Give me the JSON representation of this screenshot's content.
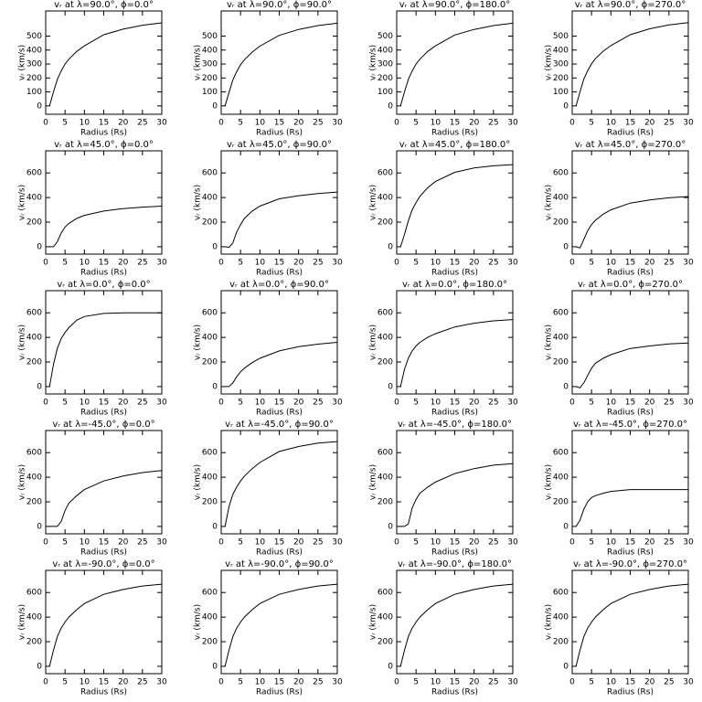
{
  "chart_data": [
    {
      "type": "line",
      "title": "vᵣ at λ=90.0°, ϕ=0.0°",
      "x_label": "Radius (Rs)",
      "y_label": "vᵣ (km/s)",
      "x": [
        1,
        2,
        3,
        4,
        5,
        6,
        8,
        10,
        15,
        20,
        25,
        30
      ],
      "values": [
        0,
        100,
        190,
        250,
        300,
        335,
        390,
        430,
        510,
        550,
        578,
        595
      ],
      "xlim": [
        0,
        30
      ],
      "ylim": [
        -60,
        680
      ],
      "xticks": [
        0,
        5,
        10,
        15,
        20,
        25,
        30
      ],
      "yticks": [
        0,
        100,
        200,
        300,
        400,
        500
      ]
    },
    {
      "type": "line",
      "title": "vᵣ at λ=90.0°, ϕ=90.0°",
      "x_label": "Radius (Rs)",
      "y_label": "vᵣ (km/s)",
      "x": [
        1,
        2,
        3,
        4,
        5,
        6,
        8,
        10,
        15,
        20,
        25,
        30
      ],
      "values": [
        0,
        95,
        185,
        245,
        295,
        330,
        385,
        428,
        505,
        548,
        575,
        592
      ],
      "xlim": [
        0,
        30
      ],
      "ylim": [
        -60,
        680
      ],
      "xticks": [
        0,
        5,
        10,
        15,
        20,
        25,
        30
      ],
      "yticks": [
        0,
        100,
        200,
        300,
        400,
        500
      ]
    },
    {
      "type": "line",
      "title": "vᵣ at λ=90.0°, ϕ=180.0°",
      "x_label": "Radius (Rs)",
      "y_label": "vᵣ (km/s)",
      "x": [
        1,
        2,
        3,
        4,
        5,
        6,
        8,
        10,
        15,
        20,
        25,
        30
      ],
      "values": [
        0,
        100,
        190,
        250,
        300,
        335,
        390,
        430,
        508,
        548,
        575,
        592
      ],
      "xlim": [
        0,
        30
      ],
      "ylim": [
        -60,
        680
      ],
      "xticks": [
        0,
        5,
        10,
        15,
        20,
        25,
        30
      ],
      "yticks": [
        0,
        100,
        200,
        300,
        400,
        500
      ]
    },
    {
      "type": "line",
      "title": "vᵣ at λ=90.0°, ϕ=270.0°",
      "x_label": "Radius (Rs)",
      "y_label": "vᵣ (km/s)",
      "x": [
        1,
        2,
        3,
        4,
        5,
        6,
        8,
        10,
        15,
        20,
        25,
        30
      ],
      "values": [
        0,
        100,
        192,
        252,
        302,
        338,
        392,
        432,
        510,
        552,
        580,
        597
      ],
      "xlim": [
        0,
        30
      ],
      "ylim": [
        -60,
        680
      ],
      "xticks": [
        0,
        5,
        10,
        15,
        20,
        25,
        30
      ],
      "yticks": [
        0,
        100,
        200,
        300,
        400,
        500
      ]
    },
    {
      "type": "line",
      "title": "vᵣ at λ=45.0°, ϕ=0.0°",
      "x_label": "Radius (Rs)",
      "y_label": "vᵣ (km/s)",
      "x": [
        1,
        2,
        3,
        4,
        5,
        6,
        8,
        10,
        15,
        20,
        25,
        30
      ],
      "values": [
        0,
        0,
        40,
        110,
        160,
        190,
        230,
        255,
        290,
        310,
        322,
        330
      ],
      "xlim": [
        0,
        30
      ],
      "ylim": [
        -60,
        780
      ],
      "xticks": [
        0,
        5,
        10,
        15,
        20,
        25,
        30
      ],
      "yticks": [
        0,
        200,
        400,
        600
      ]
    },
    {
      "type": "line",
      "title": "vᵣ at λ=45.0°, ϕ=90.0°",
      "x_label": "Radius (Rs)",
      "y_label": "vᵣ (km/s)",
      "x": [
        1,
        2,
        3,
        4,
        5,
        6,
        8,
        10,
        15,
        20,
        25,
        30
      ],
      "values": [
        0,
        -5,
        30,
        120,
        180,
        230,
        290,
        330,
        390,
        415,
        432,
        445
      ],
      "xlim": [
        0,
        30
      ],
      "ylim": [
        -60,
        780
      ],
      "xticks": [
        0,
        5,
        10,
        15,
        20,
        25,
        30
      ],
      "yticks": [
        0,
        200,
        400,
        600
      ]
    },
    {
      "type": "line",
      "title": "vᵣ at λ=45.0°, ϕ=180.0°",
      "x_label": "Radius (Rs)",
      "y_label": "vᵣ (km/s)",
      "x": [
        1,
        2,
        3,
        4,
        5,
        6,
        8,
        10,
        15,
        20,
        25,
        30
      ],
      "values": [
        0,
        100,
        210,
        300,
        360,
        410,
        480,
        530,
        605,
        640,
        658,
        668
      ],
      "xlim": [
        0,
        30
      ],
      "ylim": [
        -60,
        780
      ],
      "xticks": [
        0,
        5,
        10,
        15,
        20,
        25,
        30
      ],
      "yticks": [
        0,
        200,
        400,
        600
      ]
    },
    {
      "type": "line",
      "title": "vᵣ at λ=45.0°, ϕ=270.0°",
      "x_label": "Radius (Rs)",
      "y_label": "vᵣ (km/s)",
      "x": [
        1,
        2,
        3,
        4,
        5,
        6,
        8,
        10,
        15,
        20,
        25,
        30
      ],
      "values": [
        0,
        -10,
        60,
        130,
        180,
        215,
        265,
        300,
        355,
        380,
        398,
        408
      ],
      "xlim": [
        0,
        30
      ],
      "ylim": [
        -60,
        780
      ],
      "xticks": [
        0,
        5,
        10,
        15,
        20,
        25,
        30
      ],
      "yticks": [
        0,
        200,
        400,
        600
      ]
    },
    {
      "type": "line",
      "title": "vᵣ at λ=0.0°, ϕ=0.0°",
      "x_label": "Radius (Rs)",
      "y_label": "vᵣ (km/s)",
      "x": [
        1,
        2,
        3,
        4,
        5,
        6,
        8,
        10,
        15,
        20,
        25,
        30
      ],
      "values": [
        0,
        180,
        310,
        390,
        440,
        480,
        540,
        570,
        595,
        599,
        600,
        600
      ],
      "xlim": [
        0,
        30
      ],
      "ylim": [
        -60,
        780
      ],
      "xticks": [
        0,
        5,
        10,
        15,
        20,
        25,
        30
      ],
      "yticks": [
        0,
        200,
        400,
        600
      ]
    },
    {
      "type": "line",
      "title": "vᵣ at λ=0.0°, ϕ=90.0°",
      "x_label": "Radius (Rs)",
      "y_label": "vᵣ (km/s)",
      "x": [
        1,
        2,
        3,
        4,
        5,
        6,
        8,
        10,
        15,
        20,
        25,
        30
      ],
      "values": [
        0,
        0,
        30,
        80,
        120,
        150,
        195,
        230,
        290,
        325,
        345,
        360
      ],
      "xlim": [
        0,
        30
      ],
      "ylim": [
        -60,
        780
      ],
      "xticks": [
        0,
        5,
        10,
        15,
        20,
        25,
        30
      ],
      "yticks": [
        0,
        200,
        400,
        600
      ]
    },
    {
      "type": "line",
      "title": "vᵣ at λ=0.0°, ϕ=180.0°",
      "x_label": "Radius (Rs)",
      "y_label": "vᵣ (km/s)",
      "x": [
        1,
        2,
        3,
        4,
        5,
        6,
        8,
        10,
        15,
        20,
        25,
        30
      ],
      "values": [
        0,
        140,
        230,
        290,
        330,
        360,
        400,
        430,
        485,
        515,
        535,
        545
      ],
      "xlim": [
        0,
        30
      ],
      "ylim": [
        -60,
        780
      ],
      "xticks": [
        0,
        5,
        10,
        15,
        20,
        25,
        30
      ],
      "yticks": [
        0,
        200,
        400,
        600
      ]
    },
    {
      "type": "line",
      "title": "vᵣ at λ=0.0°, ϕ=270.0°",
      "x_label": "Radius (Rs)",
      "y_label": "vᵣ (km/s)",
      "x": [
        1,
        2,
        3,
        4,
        5,
        6,
        8,
        10,
        15,
        20,
        25,
        30
      ],
      "values": [
        0,
        -10,
        30,
        90,
        150,
        190,
        230,
        260,
        310,
        330,
        347,
        355
      ],
      "xlim": [
        0,
        30
      ],
      "ylim": [
        -60,
        780
      ],
      "xticks": [
        0,
        5,
        10,
        15,
        20,
        25,
        30
      ],
      "yticks": [
        0,
        200,
        400,
        600
      ]
    },
    {
      "type": "line",
      "title": "vᵣ at λ=-45.0°, ϕ=0.0°",
      "x_label": "Radius (Rs)",
      "y_label": "vᵣ (km/s)",
      "x": [
        1,
        2,
        3,
        4,
        5,
        6,
        8,
        10,
        15,
        20,
        25,
        30
      ],
      "values": [
        0,
        0,
        0,
        40,
        130,
        190,
        250,
        300,
        370,
        410,
        438,
        455
      ],
      "xlim": [
        0,
        30
      ],
      "ylim": [
        -60,
        780
      ],
      "xticks": [
        0,
        5,
        10,
        15,
        20,
        25,
        30
      ],
      "yticks": [
        0,
        200,
        400,
        600
      ]
    },
    {
      "type": "line",
      "title": "vᵣ at λ=-45.0°, ϕ=90.0°",
      "x_label": "Radius (Rs)",
      "y_label": "vᵣ (km/s)",
      "x": [
        1,
        2,
        3,
        4,
        5,
        6,
        8,
        10,
        15,
        20,
        25,
        30
      ],
      "values": [
        0,
        160,
        260,
        320,
        370,
        410,
        470,
        520,
        610,
        650,
        678,
        690
      ],
      "xlim": [
        0,
        30
      ],
      "ylim": [
        -60,
        780
      ],
      "xticks": [
        0,
        5,
        10,
        15,
        20,
        25,
        30
      ],
      "yticks": [
        0,
        200,
        400,
        600
      ]
    },
    {
      "type": "line",
      "title": "vᵣ at λ=-45.0°, ϕ=180.0°",
      "x_label": "Radius (Rs)",
      "y_label": "vᵣ (km/s)",
      "x": [
        1,
        2,
        3,
        4,
        5,
        6,
        8,
        10,
        15,
        20,
        25,
        30
      ],
      "values": [
        0,
        0,
        20,
        150,
        220,
        270,
        320,
        360,
        430,
        470,
        498,
        510
      ],
      "xlim": [
        0,
        30
      ],
      "ylim": [
        -60,
        780
      ],
      "xticks": [
        0,
        5,
        10,
        15,
        20,
        25,
        30
      ],
      "yticks": [
        0,
        200,
        400,
        600
      ]
    },
    {
      "type": "line",
      "title": "vᵣ at λ=-45.0°, ϕ=270.0°",
      "x_label": "Radius (Rs)",
      "y_label": "vᵣ (km/s)",
      "x": [
        1,
        2,
        3,
        4,
        5,
        6,
        8,
        10,
        15,
        20,
        25,
        30
      ],
      "values": [
        0,
        50,
        140,
        200,
        235,
        250,
        270,
        285,
        300,
        300,
        300,
        300
      ],
      "xlim": [
        0,
        30
      ],
      "ylim": [
        -60,
        780
      ],
      "xticks": [
        0,
        5,
        10,
        15,
        20,
        25,
        30
      ],
      "yticks": [
        0,
        200,
        400,
        600
      ]
    },
    {
      "type": "line",
      "title": "vᵣ at λ=-90.0°, ϕ=0.0°",
      "x_label": "Radius (Rs)",
      "y_label": "vᵣ (km/s)",
      "x": [
        1,
        2,
        3,
        4,
        5,
        6,
        8,
        10,
        15,
        20,
        25,
        30
      ],
      "values": [
        0,
        130,
        240,
        310,
        360,
        400,
        460,
        510,
        585,
        625,
        653,
        668
      ],
      "xlim": [
        0,
        30
      ],
      "ylim": [
        -60,
        780
      ],
      "xticks": [
        0,
        5,
        10,
        15,
        20,
        25,
        30
      ],
      "yticks": [
        0,
        200,
        400,
        600
      ]
    },
    {
      "type": "line",
      "title": "vᵣ at λ=-90.0°, ϕ=90.0°",
      "x_label": "Radius (Rs)",
      "y_label": "vᵣ (km/s)",
      "x": [
        1,
        2,
        3,
        4,
        5,
        6,
        8,
        10,
        15,
        20,
        25,
        30
      ],
      "values": [
        0,
        130,
        240,
        310,
        360,
        400,
        460,
        510,
        585,
        625,
        653,
        668
      ],
      "xlim": [
        0,
        30
      ],
      "ylim": [
        -60,
        780
      ],
      "xticks": [
        0,
        5,
        10,
        15,
        20,
        25,
        30
      ],
      "yticks": [
        0,
        200,
        400,
        600
      ]
    },
    {
      "type": "line",
      "title": "vᵣ at λ=-90.0°, ϕ=180.0°",
      "x_label": "Radius (Rs)",
      "y_label": "vᵣ (km/s)",
      "x": [
        1,
        2,
        3,
        4,
        5,
        6,
        8,
        10,
        15,
        20,
        25,
        30
      ],
      "values": [
        0,
        130,
        240,
        310,
        360,
        400,
        460,
        510,
        585,
        625,
        653,
        668
      ],
      "xlim": [
        0,
        30
      ],
      "ylim": [
        -60,
        780
      ],
      "xticks": [
        0,
        5,
        10,
        15,
        20,
        25,
        30
      ],
      "yticks": [
        0,
        200,
        400,
        600
      ]
    },
    {
      "type": "line",
      "title": "vᵣ at λ=-90.0°, ϕ=270.0°",
      "x_label": "Radius (Rs)",
      "y_label": "vᵣ (km/s)",
      "x": [
        1,
        2,
        3,
        4,
        5,
        6,
        8,
        10,
        15,
        20,
        25,
        30
      ],
      "values": [
        0,
        130,
        240,
        310,
        360,
        400,
        460,
        510,
        585,
        625,
        653,
        668
      ],
      "xlim": [
        0,
        30
      ],
      "ylim": [
        -60,
        780
      ],
      "xticks": [
        0,
        5,
        10,
        15,
        20,
        25,
        30
      ],
      "yticks": [
        0,
        200,
        400,
        600
      ]
    }
  ]
}
